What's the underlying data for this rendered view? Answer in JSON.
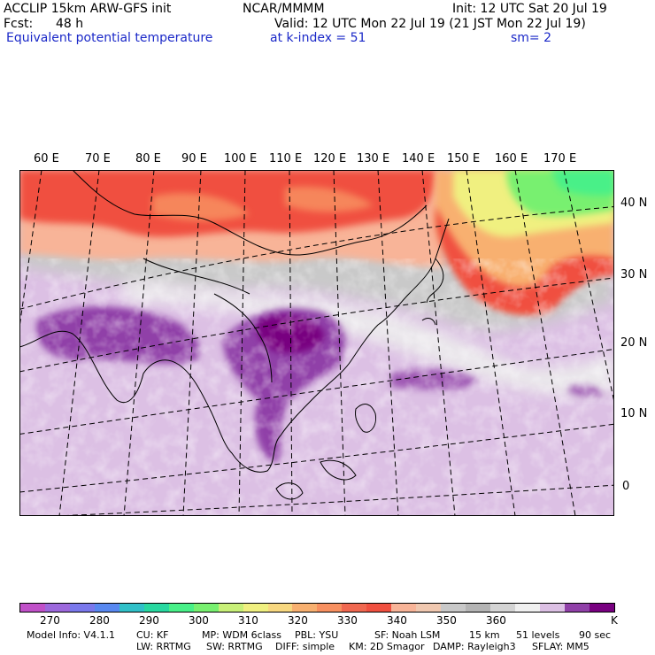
{
  "header": {
    "model": "ACCLIP 15km ARW-GFS init",
    "org": "NCAR/MMMM",
    "init": "Init: 12 UTC Sat 20 Jul 19",
    "fcst_label": "Fcst:",
    "fcst_value": "48 h",
    "valid": "Valid: 12 UTC Mon 22 Jul 19 (21 JST Mon 22 Jul 19)",
    "field": "Equivalent potential temperature",
    "level": "at k-index =  51",
    "smooth": "sm= 2"
  },
  "map": {
    "lon_labels": [
      "60 E",
      "70 E",
      "80 E",
      "90 E",
      "100 E",
      "110 E",
      "120 E",
      "130 E",
      "140 E",
      "150 E",
      "160 E",
      "170 E"
    ],
    "lat_labels": [
      "40 N",
      "30 N",
      "20 N",
      "10 N",
      "0"
    ]
  },
  "colorbar": {
    "unit": "K",
    "ticks": [
      "270",
      "280",
      "290",
      "300",
      "310",
      "320",
      "330",
      "340",
      "350",
      "360"
    ],
    "colors": [
      "#c050c8",
      "#9c68dc",
      "#7a78ec",
      "#5888f0",
      "#30c0c8",
      "#28d8a0",
      "#48f088",
      "#78f070",
      "#c8f078",
      "#f0f080",
      "#f8d880",
      "#f8b070",
      "#f89060",
      "#f06850",
      "#f05040",
      "#f8b498",
      "#f0c8b0",
      "#c8c8c8",
      "#b4b4b4",
      "#d4d4d4",
      "#f0f0f0",
      "#dcc0e4",
      "#9040a8",
      "#780080"
    ]
  },
  "footer": {
    "line1": [
      "Model Info: V4.1.1",
      "CU: KF",
      "MP: WDM 6class",
      "PBL: YSU",
      "SF: Noah LSM",
      "15 km",
      "51 levels",
      "90 sec"
    ],
    "line2": [
      "LW: RRTMG",
      "SW: RRTMG",
      "DIFF: simple",
      "KM: 2D Smagor",
      "DAMP: Rayleigh3",
      "SFLAY: MM5"
    ]
  }
}
